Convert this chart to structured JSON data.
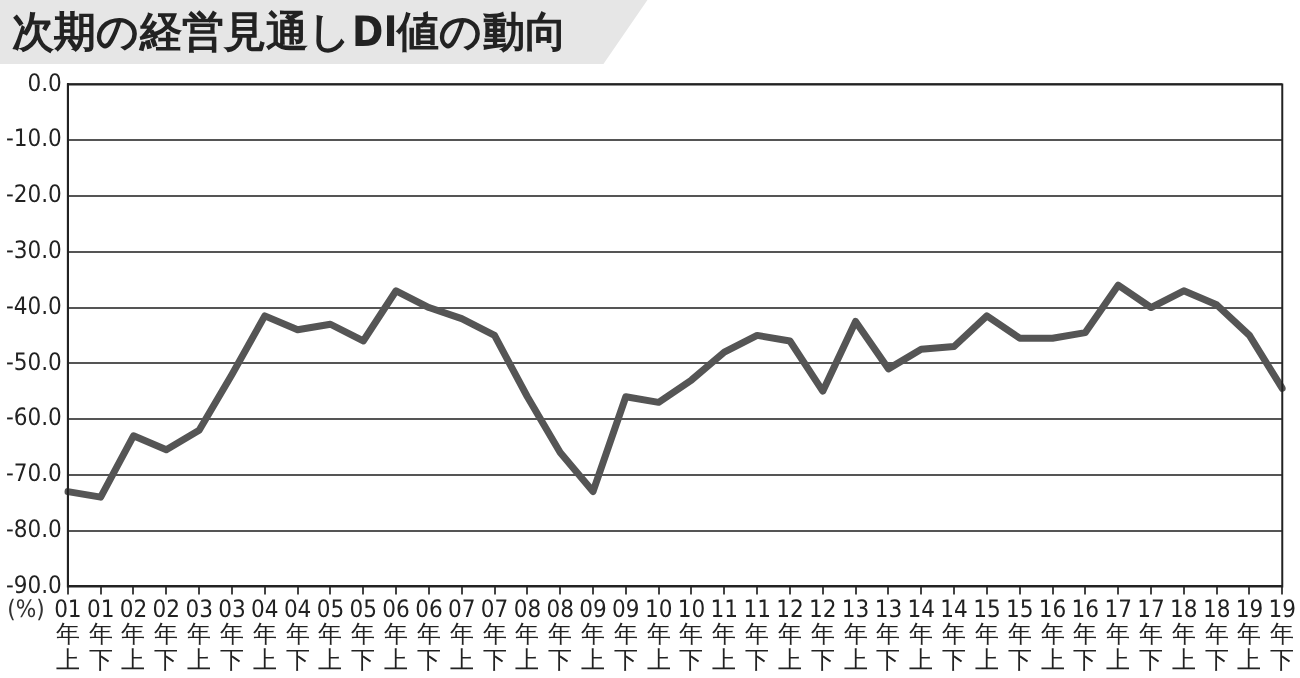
{
  "chart_data": {
    "type": "line",
    "title": "次期の経営見通しDI値の動向",
    "ylabel": "(%)",
    "categories": [
      "01年上",
      "01年下",
      "02年上",
      "02年下",
      "03年上",
      "03年下",
      "04年上",
      "04年下",
      "05年上",
      "05年下",
      "06年上",
      "06年下",
      "07年上",
      "07年下",
      "08年上",
      "08年下",
      "09年上",
      "09年下",
      "10年上",
      "10年下",
      "11年上",
      "11年下",
      "12年上",
      "12年下",
      "13年上",
      "13年下",
      "14年上",
      "14年下",
      "15年上",
      "15年下",
      "16年上",
      "16年下",
      "17年上",
      "17年下",
      "18年上",
      "18年下",
      "19年上",
      "19年下"
    ],
    "series": [
      {
        "color": "#555555",
        "values": [
          -73,
          -74,
          -63,
          -65.5,
          -62,
          -52,
          -41.5,
          -44,
          -43,
          -46,
          -37,
          -40,
          -42,
          -45,
          -56,
          -66,
          -73,
          -56,
          -57,
          -53,
          -48,
          -45,
          -46,
          -55,
          -42.5,
          -51,
          -47.5,
          -47,
          -41.5,
          -45.5,
          -45.5,
          -44.5,
          -36,
          -40,
          -37,
          -39.5,
          -45,
          -54.5
        ]
      }
    ],
    "ylim": [
      -90,
      0
    ],
    "yticks": [
      {
        "value": 0,
        "label": "0.0"
      },
      {
        "value": -10,
        "label": "-10.0"
      },
      {
        "value": -20,
        "label": "-20.0"
      },
      {
        "value": -30,
        "label": "-30.0"
      },
      {
        "value": -40,
        "label": "-40.0"
      },
      {
        "value": -50,
        "label": "-50.0"
      },
      {
        "value": -60,
        "label": "-60.0"
      },
      {
        "value": -70,
        "label": "-70.0"
      },
      {
        "value": -80,
        "label": "-80.0"
      },
      {
        "value": -90,
        "label": "-90.0"
      }
    ],
    "grid": "y",
    "legend": false,
    "marker": "none",
    "line_style": "solid"
  }
}
